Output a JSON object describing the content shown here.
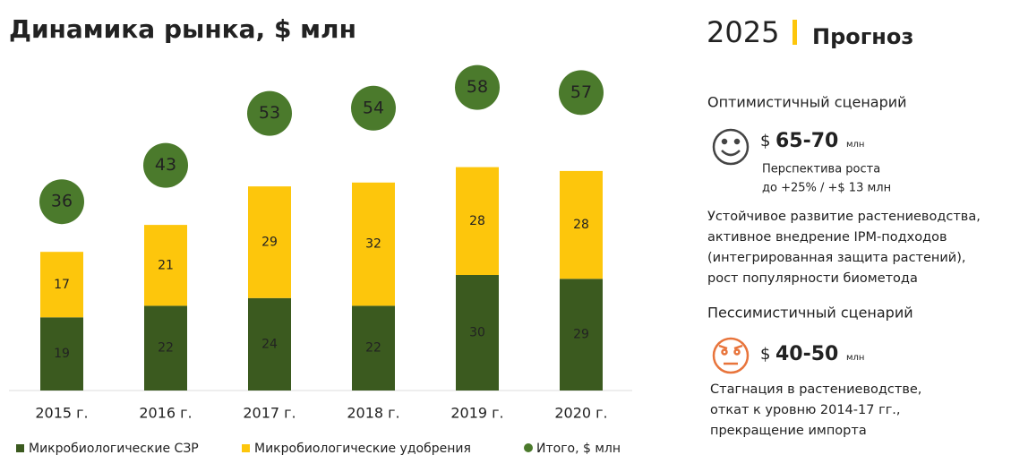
{
  "chart_data": {
    "type": "stacked-bar",
    "title": "Динамика рынка, $ млн",
    "categories": [
      "2015 г.",
      "2016 г.",
      "2017 г.",
      "2018 г.",
      "2019 г.",
      "2020 г."
    ],
    "series": [
      {
        "name": "Микробиологические СЗР",
        "color": "#3b5a1f",
        "values": [
          19,
          22,
          24,
          22,
          30,
          29
        ]
      },
      {
        "name": "Микробиологические удобрения",
        "color": "#fdc60c",
        "values": [
          17,
          21,
          29,
          32,
          28,
          28
        ]
      },
      {
        "name": "Итого, $ млн",
        "color": "#4b7a2c",
        "values": [
          36,
          43,
          53,
          54,
          58,
          57
        ]
      }
    ]
  },
  "forecast": {
    "year": "2025",
    "title": "Прогноз",
    "scenarios": [
      {
        "name": "Оптимистичный сценарий",
        "currency": "$",
        "range": "65-70",
        "unit": "млн",
        "growth": [
          "Перспектива роста",
          "до +25% / +$ 13 млн"
        ],
        "description": [
          "Устойчивое развитие растениеводства,",
          "активное внедрение IPM-подходов",
          "(интегрированная защита растений),",
          "рост популярности биометода"
        ]
      },
      {
        "name": "Пессимистичный сценарий",
        "currency": "$",
        "range": "40-50",
        "unit": "млн",
        "description": [
          "Стагнация в растениеводстве,",
          "откат к уровню 2014-17 гг.,",
          "прекращение импорта"
        ]
      }
    ]
  }
}
